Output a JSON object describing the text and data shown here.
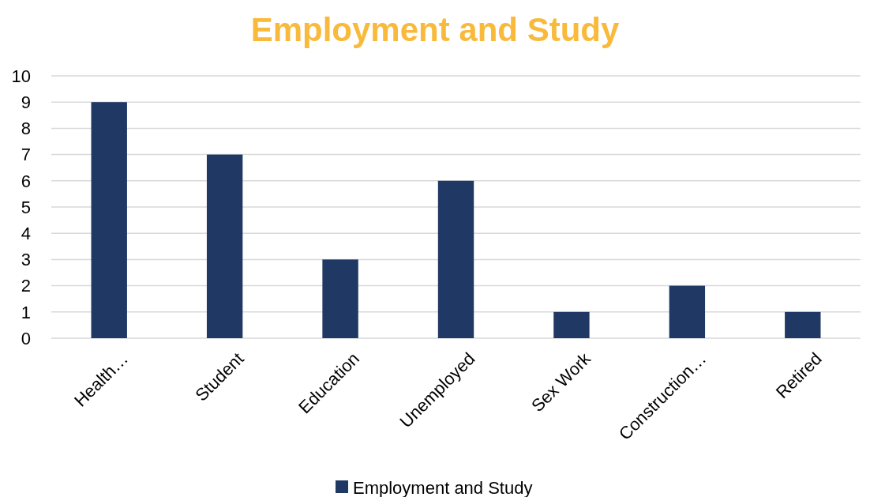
{
  "chart_data": {
    "type": "bar",
    "title": "Employment and Study",
    "categories": [
      "Health…",
      "Student",
      "Education",
      "Unemployed",
      "Sex Work",
      "Construction…",
      "Retired"
    ],
    "series": [
      {
        "name": "Employment and Study",
        "color": "#1f3864",
        "values": [
          9,
          7,
          3,
          6,
          1,
          2,
          1
        ]
      }
    ],
    "ylim": [
      0,
      10
    ],
    "yticks": [
      0,
      1,
      2,
      3,
      4,
      5,
      6,
      7,
      8,
      9,
      10
    ],
    "grid": "y",
    "legend": "bottom"
  }
}
